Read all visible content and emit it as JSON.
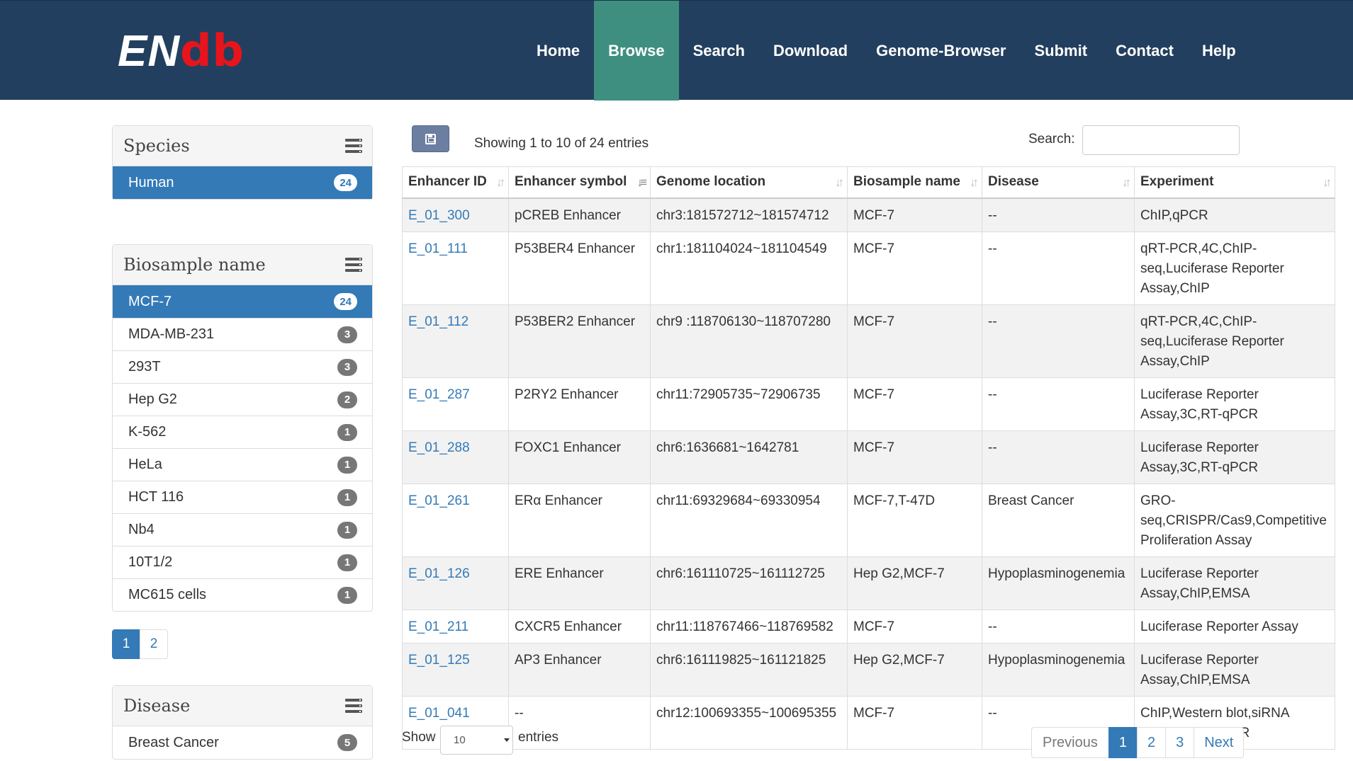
{
  "brand": {
    "part1": "EN",
    "part2": "db"
  },
  "nav": [
    "Home",
    "Browse",
    "Search",
    "Download",
    "Genome-Browser",
    "Submit",
    "Contact",
    "Help"
  ],
  "nav_active": "Browse",
  "species": {
    "title": "Species",
    "items": [
      {
        "label": "Human",
        "count": "24"
      }
    ]
  },
  "biosample": {
    "title": "Biosample name",
    "items": [
      {
        "label": "MCF-7",
        "count": "24"
      },
      {
        "label": "MDA-MB-231",
        "count": "3"
      },
      {
        "label": "293T",
        "count": "3"
      },
      {
        "label": "Hep G2",
        "count": "2"
      },
      {
        "label": "K-562",
        "count": "1"
      },
      {
        "label": "HeLa",
        "count": "1"
      },
      {
        "label": "HCT 116",
        "count": "1"
      },
      {
        "label": "Nb4",
        "count": "1"
      },
      {
        "label": "10T1/2",
        "count": "1"
      },
      {
        "label": "MC615 cells",
        "count": "1"
      }
    ],
    "pages": [
      "1",
      "2"
    ]
  },
  "disease": {
    "title": "Disease",
    "items": [
      {
        "label": "Breast Cancer",
        "count": "5"
      }
    ]
  },
  "table_info": "Showing 1 to 10 of 24 entries",
  "search": {
    "label": "Search:",
    "value": ""
  },
  "table": {
    "headers": [
      "Enhancer ID",
      "Enhancer symbol",
      "Genome location",
      "Biosample name",
      "Disease",
      "Experiment"
    ],
    "rows": [
      [
        "E_01_300",
        "pCREB Enhancer",
        "chr3:181572712~181574712",
        "MCF-7",
        "--",
        "ChIP,qPCR"
      ],
      [
        "E_01_111",
        "P53BER4 Enhancer",
        "chr1:181104024~181104549",
        "MCF-7",
        "--",
        "qRT-PCR,4C,ChIP-seq,Luciferase Reporter Assay,ChIP"
      ],
      [
        "E_01_112",
        "P53BER2 Enhancer",
        "chr9 :118706130~118707280",
        "MCF-7",
        "--",
        "qRT-PCR,4C,ChIP-seq,Luciferase Reporter Assay,ChIP"
      ],
      [
        "E_01_287",
        "P2RY2 Enhancer",
        "chr11:72905735~72906735",
        "MCF-7",
        "--",
        "Luciferase Reporter Assay,3C,RT-qPCR"
      ],
      [
        "E_01_288",
        "FOXC1 Enhancer",
        "chr6:1636681~1642781",
        "MCF-7",
        "--",
        "Luciferase Reporter Assay,3C,RT-qPCR"
      ],
      [
        "E_01_261",
        "ERα Enhancer",
        "chr11:69329684~69330954",
        "MCF-7,T-47D",
        "Breast Cancer",
        "GRO-seq,CRISPR/Cas9,Competitive Proliferation Assay"
      ],
      [
        "E_01_126",
        "ERE Enhancer",
        "chr6:161110725~161112725",
        "Hep G2,MCF-7",
        "Hypoplasminogenemia",
        "Luciferase Reporter Assay,ChIP,EMSA"
      ],
      [
        "E_01_211",
        "CXCR5 Enhancer",
        "chr11:118767466~118769582",
        "MCF-7",
        "--",
        "Luciferase Reporter Assay"
      ],
      [
        "E_01_125",
        "AP3 Enhancer",
        "chr6:161119825~161121825",
        "Hep G2,MCF-7",
        "Hypoplasminogenemia",
        "Luciferase Reporter Assay,ChIP,EMSA"
      ],
      [
        "E_01_041",
        "--",
        "chr12:100693355~100695355",
        "MCF-7",
        "--",
        "ChIP,Western blot,siRNA Knockdown,qPCR"
      ]
    ]
  },
  "length_menu": {
    "show": "Show",
    "value": "10",
    "entries": "entries"
  },
  "pagination": {
    "previous": "Previous",
    "pages": [
      "1",
      "2",
      "3"
    ],
    "active": "1",
    "next": "Next"
  },
  "colors": {
    "navbar": "#233f5f",
    "nav_active": "#3f8f80",
    "primary": "#337ab7",
    "brand_red": "#e8141c"
  }
}
